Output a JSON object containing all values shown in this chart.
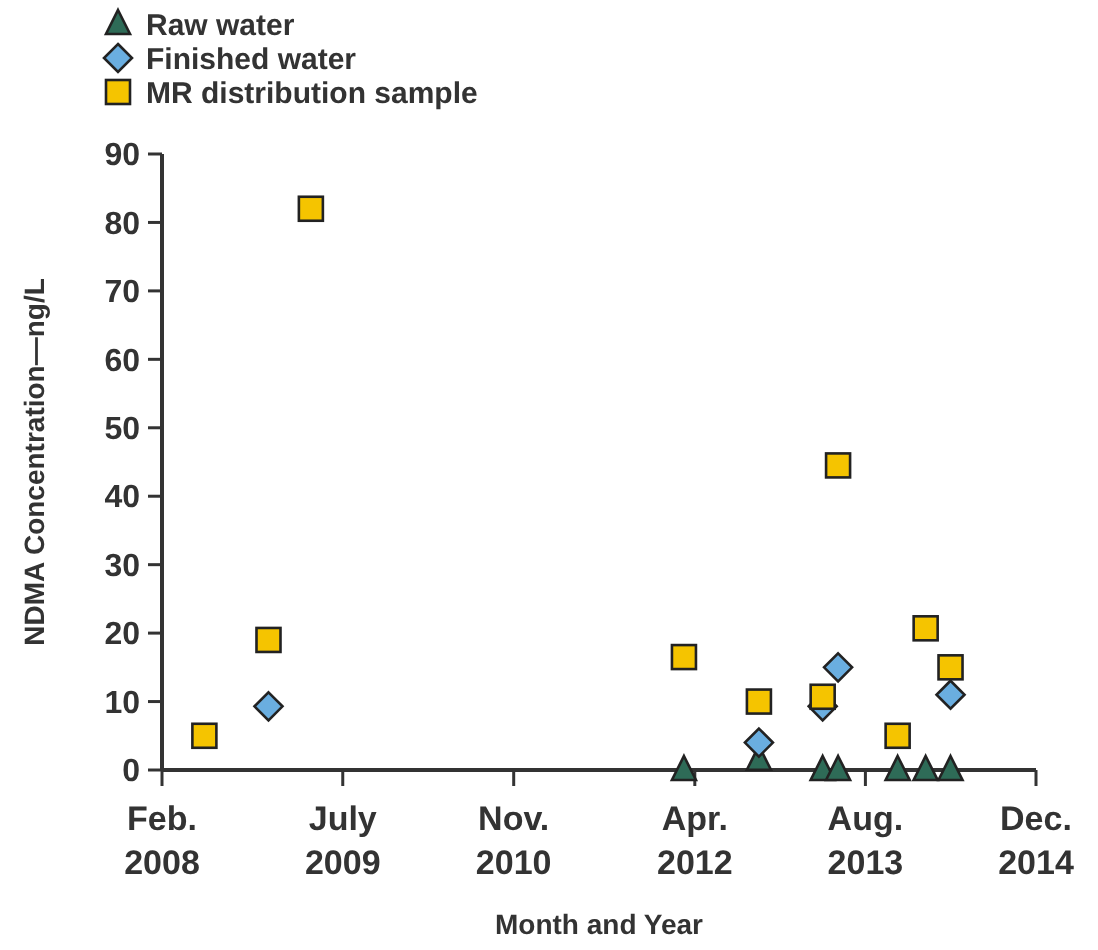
{
  "chart_data": {
    "type": "scatter",
    "xlabel": "Month and Year",
    "ylabel": "NDMA Concentration—ng/L",
    "xlim": [
      "2008-02",
      "2014-12"
    ],
    "xticks": [
      {
        "value": "2008-02",
        "label": "Feb. 2008"
      },
      {
        "value": "2009-07",
        "label": "July 2009"
      },
      {
        "value": "2010-11",
        "label": "Nov. 2010"
      },
      {
        "value": "2012-04",
        "label": "Apr. 2012"
      },
      {
        "value": "2013-08",
        "label": "Aug. 2013"
      },
      {
        "value": "2014-12",
        "label": "Dec. 2014"
      }
    ],
    "ylim": [
      0,
      90
    ],
    "yticks": [
      0,
      10,
      20,
      30,
      40,
      50,
      60,
      70,
      80,
      90
    ],
    "grid": false,
    "legend": "top left",
    "series": [
      {
        "name": "Raw water",
        "color": "#2e6b57",
        "marker": "triangle",
        "x": [
          "2012-03",
          "2012-10",
          "2013-04",
          "2013-05-15",
          "2013-11",
          "2014-01-20",
          "2014-04"
        ],
        "values": [
          0,
          1.5,
          0,
          0,
          0,
          0,
          0
        ]
      },
      {
        "name": "Finished water",
        "color": "#6aaee0",
        "marker": "diamond",
        "x": [
          "2008-12",
          "2012-10",
          "2013-04",
          "2013-05-15",
          "2014-04"
        ],
        "values": [
          9.3,
          4,
          9.3,
          15,
          11
        ]
      },
      {
        "name": "MR distribution sample",
        "color": "#f5c400",
        "marker": "square",
        "x": [
          "2008-06",
          "2008-12",
          "2009-04",
          "2012-03",
          "2012-10",
          "2013-04",
          "2013-05-15",
          "2013-11",
          "2014-01-20",
          "2014-04"
        ],
        "values": [
          5,
          19,
          82,
          16.5,
          10,
          10.7,
          44.5,
          5,
          20.7,
          15
        ]
      }
    ]
  }
}
